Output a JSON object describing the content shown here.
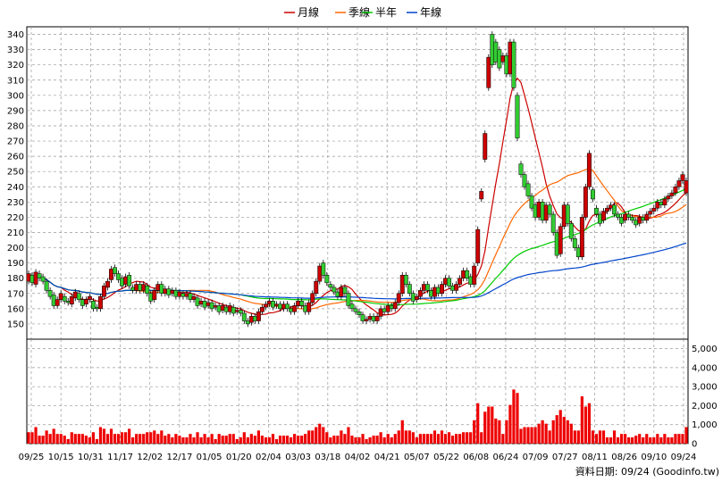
{
  "chart_data": [
    {
      "type": "candlestick",
      "legend": [
        {
          "name": "月線",
          "color": "#cc0000"
        },
        {
          "name": "季線",
          "color": "#ff6600"
        },
        {
          "name": "半年",
          "color": "#00cc00"
        },
        {
          "name": "年線",
          "color": "#0044cc"
        }
      ],
      "ylim": [
        140,
        345
      ],
      "yticks": [
        150,
        160,
        170,
        180,
        190,
        200,
        210,
        220,
        230,
        240,
        250,
        260,
        270,
        280,
        290,
        300,
        310,
        320,
        330,
        340
      ],
      "grid": true,
      "up_color": "#cc0000",
      "down_color": "#33cc33",
      "candles": [
        [
          0,
          178,
          183
        ],
        [
          2,
          182,
          177
        ],
        [
          4,
          176,
          184
        ],
        [
          6,
          183,
          180
        ],
        [
          8,
          181,
          178
        ],
        [
          10,
          178,
          172
        ],
        [
          12,
          172,
          168
        ],
        [
          14,
          169,
          162
        ],
        [
          16,
          162,
          166
        ],
        [
          18,
          166,
          170
        ],
        [
          20,
          168,
          165
        ],
        [
          22,
          165,
          164
        ],
        [
          24,
          163,
          168
        ],
        [
          26,
          167,
          171
        ],
        [
          28,
          170,
          166
        ],
        [
          30,
          166,
          162
        ],
        [
          32,
          163,
          166
        ],
        [
          34,
          166,
          168
        ],
        [
          36,
          165,
          160
        ],
        [
          38,
          161,
          160
        ],
        [
          40,
          160,
          168
        ],
        [
          42,
          168,
          175
        ],
        [
          44,
          174,
          178
        ],
        [
          46,
          179,
          186
        ],
        [
          48,
          187,
          183
        ],
        [
          50,
          183,
          179
        ],
        [
          52,
          180,
          175
        ],
        [
          54,
          176,
          181
        ],
        [
          56,
          182,
          175
        ],
        [
          58,
          174,
          172
        ],
        [
          60,
          172,
          176
        ],
        [
          62,
          176,
          172
        ],
        [
          64,
          172,
          176
        ],
        [
          66,
          175,
          170
        ],
        [
          68,
          170,
          165
        ],
        [
          70,
          166,
          172
        ],
        [
          72,
          172,
          176
        ],
        [
          74,
          176,
          170
        ],
        [
          76,
          170,
          173
        ],
        [
          78,
          173,
          169
        ],
        [
          80,
          170,
          172
        ],
        [
          82,
          172,
          168
        ],
        [
          84,
          168,
          171
        ],
        [
          86,
          170,
          168
        ],
        [
          88,
          168,
          170
        ],
        [
          90,
          170,
          166
        ],
        [
          92,
          166,
          168
        ],
        [
          94,
          167,
          162
        ],
        [
          96,
          163,
          165
        ],
        [
          98,
          165,
          161
        ],
        [
          100,
          162,
          164
        ],
        [
          102,
          164,
          160
        ],
        [
          104,
          161,
          162
        ],
        [
          106,
          162,
          158
        ],
        [
          108,
          159,
          162
        ],
        [
          110,
          161,
          158
        ],
        [
          112,
          158,
          162
        ],
        [
          114,
          161,
          157
        ],
        [
          116,
          158,
          159
        ],
        [
          118,
          159,
          157
        ],
        [
          120,
          157,
          152
        ],
        [
          122,
          152,
          150
        ],
        [
          124,
          151,
          155
        ],
        [
          126,
          155,
          152
        ],
        [
          128,
          152,
          158
        ],
        [
          130,
          158,
          161
        ],
        [
          132,
          161,
          163
        ],
        [
          134,
          163,
          165
        ],
        [
          136,
          165,
          161
        ],
        [
          138,
          162,
          163
        ],
        [
          140,
          163,
          160
        ],
        [
          142,
          160,
          163
        ],
        [
          144,
          163,
          160
        ],
        [
          146,
          160,
          158
        ],
        [
          148,
          158,
          162
        ],
        [
          150,
          162,
          165
        ],
        [
          152,
          165,
          162
        ],
        [
          154,
          162,
          158
        ],
        [
          156,
          158,
          164
        ],
        [
          158,
          164,
          170
        ],
        [
          160,
          170,
          178
        ],
        [
          162,
          178,
          188
        ],
        [
          164,
          190,
          182
        ],
        [
          166,
          182,
          177
        ],
        [
          168,
          176,
          174
        ],
        [
          170,
          174,
          171
        ],
        [
          172,
          171,
          168
        ],
        [
          174,
          168,
          174
        ],
        [
          176,
          174,
          170
        ],
        [
          178,
          170,
          162
        ],
        [
          180,
          163,
          160
        ],
        [
          182,
          160,
          158
        ],
        [
          184,
          158,
          156
        ],
        [
          186,
          156,
          152
        ],
        [
          188,
          152,
          153
        ],
        [
          190,
          153,
          155
        ],
        [
          192,
          155,
          152
        ],
        [
          194,
          152,
          155
        ],
        [
          196,
          155,
          160
        ],
        [
          198,
          160,
          158
        ],
        [
          200,
          158,
          162
        ],
        [
          202,
          162,
          160
        ],
        [
          204,
          160,
          164
        ],
        [
          206,
          164,
          170
        ],
        [
          208,
          170,
          182
        ],
        [
          210,
          182,
          176
        ],
        [
          212,
          176,
          170
        ],
        [
          214,
          170,
          165
        ],
        [
          216,
          166,
          168
        ],
        [
          218,
          168,
          172
        ],
        [
          220,
          172,
          176
        ],
        [
          222,
          176,
          172
        ],
        [
          224,
          172,
          168
        ],
        [
          226,
          168,
          174
        ],
        [
          228,
          174,
          170
        ],
        [
          230,
          170,
          176
        ],
        [
          232,
          176,
          180
        ],
        [
          234,
          180,
          175
        ],
        [
          236,
          175,
          172
        ],
        [
          238,
          172,
          176
        ],
        [
          240,
          176,
          180
        ],
        [
          242,
          180,
          185
        ],
        [
          244,
          185,
          180
        ],
        [
          246,
          181,
          176
        ],
        [
          248,
          176,
          188
        ],
        [
          250,
          190,
          212
        ],
        [
          252,
          232,
          237
        ],
        [
          254,
          258,
          275
        ],
        [
          256,
          305,
          325
        ],
        [
          258,
          340,
          320
        ],
        [
          260,
          335,
          322
        ],
        [
          262,
          330,
          318
        ],
        [
          264,
          322,
          326
        ],
        [
          266,
          326,
          314
        ],
        [
          268,
          314,
          335
        ],
        [
          270,
          335,
          305
        ],
        [
          272,
          300,
          272
        ],
        [
          274,
          255,
          248
        ],
        [
          276,
          248,
          240
        ],
        [
          278,
          242,
          234
        ],
        [
          280,
          234,
          226
        ],
        [
          282,
          228,
          220
        ],
        [
          284,
          220,
          230
        ],
        [
          286,
          230,
          218
        ],
        [
          288,
          218,
          228
        ],
        [
          290,
          228,
          222
        ],
        [
          292,
          222,
          210
        ],
        [
          294,
          210,
          195
        ],
        [
          296,
          196,
          214
        ],
        [
          298,
          214,
          228
        ],
        [
          300,
          228,
          216
        ],
        [
          302,
          216,
          206
        ],
        [
          304,
          206,
          200
        ],
        [
          306,
          200,
          194
        ],
        [
          308,
          194,
          220
        ],
        [
          310,
          220,
          240
        ],
        [
          312,
          240,
          262
        ],
        [
          314,
          238,
          232
        ],
        [
          316,
          226,
          222
        ],
        [
          318,
          222,
          216
        ],
        [
          320,
          218,
          224
        ],
        [
          322,
          224,
          226
        ],
        [
          324,
          226,
          228
        ],
        [
          326,
          228,
          222
        ],
        [
          328,
          222,
          220
        ],
        [
          330,
          220,
          216
        ],
        [
          332,
          218,
          222
        ],
        [
          334,
          222,
          220
        ],
        [
          336,
          220,
          218
        ],
        [
          338,
          218,
          215
        ],
        [
          340,
          216,
          220
        ],
        [
          342,
          220,
          218
        ],
        [
          344,
          218,
          222
        ],
        [
          346,
          222,
          224
        ],
        [
          348,
          224,
          226
        ],
        [
          350,
          226,
          230
        ],
        [
          352,
          230,
          228
        ],
        [
          354,
          228,
          232
        ],
        [
          356,
          232,
          234
        ],
        [
          358,
          234,
          236
        ],
        [
          360,
          236,
          240
        ],
        [
          362,
          240,
          244
        ],
        [
          364,
          244,
          248
        ],
        [
          366,
          236,
          244
        ]
      ],
      "volume_ylim": [
        0,
        5500
      ],
      "volume_yticks": [
        "5,000",
        "4,000",
        "3,000",
        "2,000",
        "1,000",
        "0"
      ],
      "volume_ytick_values": [
        5000,
        4000,
        3000,
        2000,
        1000,
        0
      ],
      "volume_color": "#ee0000",
      "x_tick_labels": [
        "09/25",
        "10/15",
        "10/31",
        "11/17",
        "12/02",
        "12/17",
        "01/05",
        "01/20",
        "02/04",
        "03/03",
        "03/18",
        "04/02",
        "04/21",
        "05/07",
        "05/22",
        "06/08",
        "06/24",
        "07/09",
        "07/27",
        "08/11",
        "08/26",
        "09/10",
        "09/24"
      ],
      "source_note": "資料日期: 09/24 (Goodinfo.tw)"
    }
  ]
}
